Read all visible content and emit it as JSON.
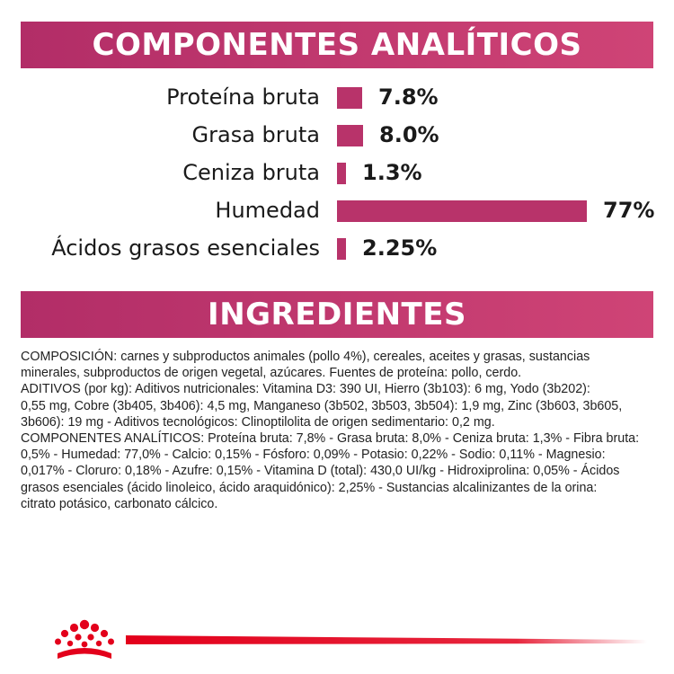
{
  "colors": {
    "accent_start": "#b22d67",
    "accent_end": "#cf4476",
    "bar": "#b8336a",
    "brand_red": "#e3001b",
    "text": "#1a1a1a"
  },
  "analytics": {
    "title": "COMPONENTES ANALÍTICOS",
    "bar_scale_max": 77,
    "rows": [
      {
        "label": "Proteína bruta",
        "value_text": "7.8%",
        "value": 7.8
      },
      {
        "label": "Grasa bruta",
        "value_text": "8.0%",
        "value": 8.0
      },
      {
        "label": "Ceniza bruta",
        "value_text": "1.3%",
        "value": 1.3
      },
      {
        "label": "Humedad",
        "value_text": "77%",
        "value": 77
      },
      {
        "label": "Ácidos grasos esenciales",
        "value_text": "2.25%",
        "value": 2.25
      }
    ]
  },
  "ingredients": {
    "title": "INGREDIENTES",
    "lines": [
      "COMPOSICIÓN: carnes y subproductos animales (pollo 4%), cereales, aceites y grasas, sustancias",
      "minerales, subproductos de origen vegetal, azúcares. Fuentes de proteína: pollo, cerdo.",
      "ADITIVOS (por kg): Aditivos nutricionales: Vitamina D3: 390 UI, Hierro (3b103): 6 mg, Yodo (3b202):",
      "0,55 mg, Cobre (3b405, 3b406): 4,5 mg, Manganeso (3b502, 3b503, 3b504): 1,9 mg, Zinc (3b603, 3b605,",
      "3b606): 19 mg - Aditivos tecnológicos: Clinoptilolita de origen sedimentario: 0,2 mg.",
      "COMPONENTES ANALÍTICOS: Proteína bruta: 7,8% - Grasa bruta: 8,0% - Ceniza bruta: 1,3% - Fibra bruta:",
      "0,5% - Humedad: 77,0% - Calcio: 0,15% - Fósforo: 0,09% - Potasio: 0,22% - Sodio: 0,11% - Magnesio:",
      "0,017% - Cloruro: 0,18% - Azufre: 0,15% - Vitamina D (total): 430,0 UI/kg - Hidroxiprolina: 0,05% - Ácidos",
      "grasos esenciales (ácido linoleico, ácido araquidónico): 2,25% - Sustancias alcalinizantes de la orina:",
      "citrato potásico, carbonato cálcico."
    ]
  },
  "footer": {
    "logo_icon": "crown-icon"
  }
}
